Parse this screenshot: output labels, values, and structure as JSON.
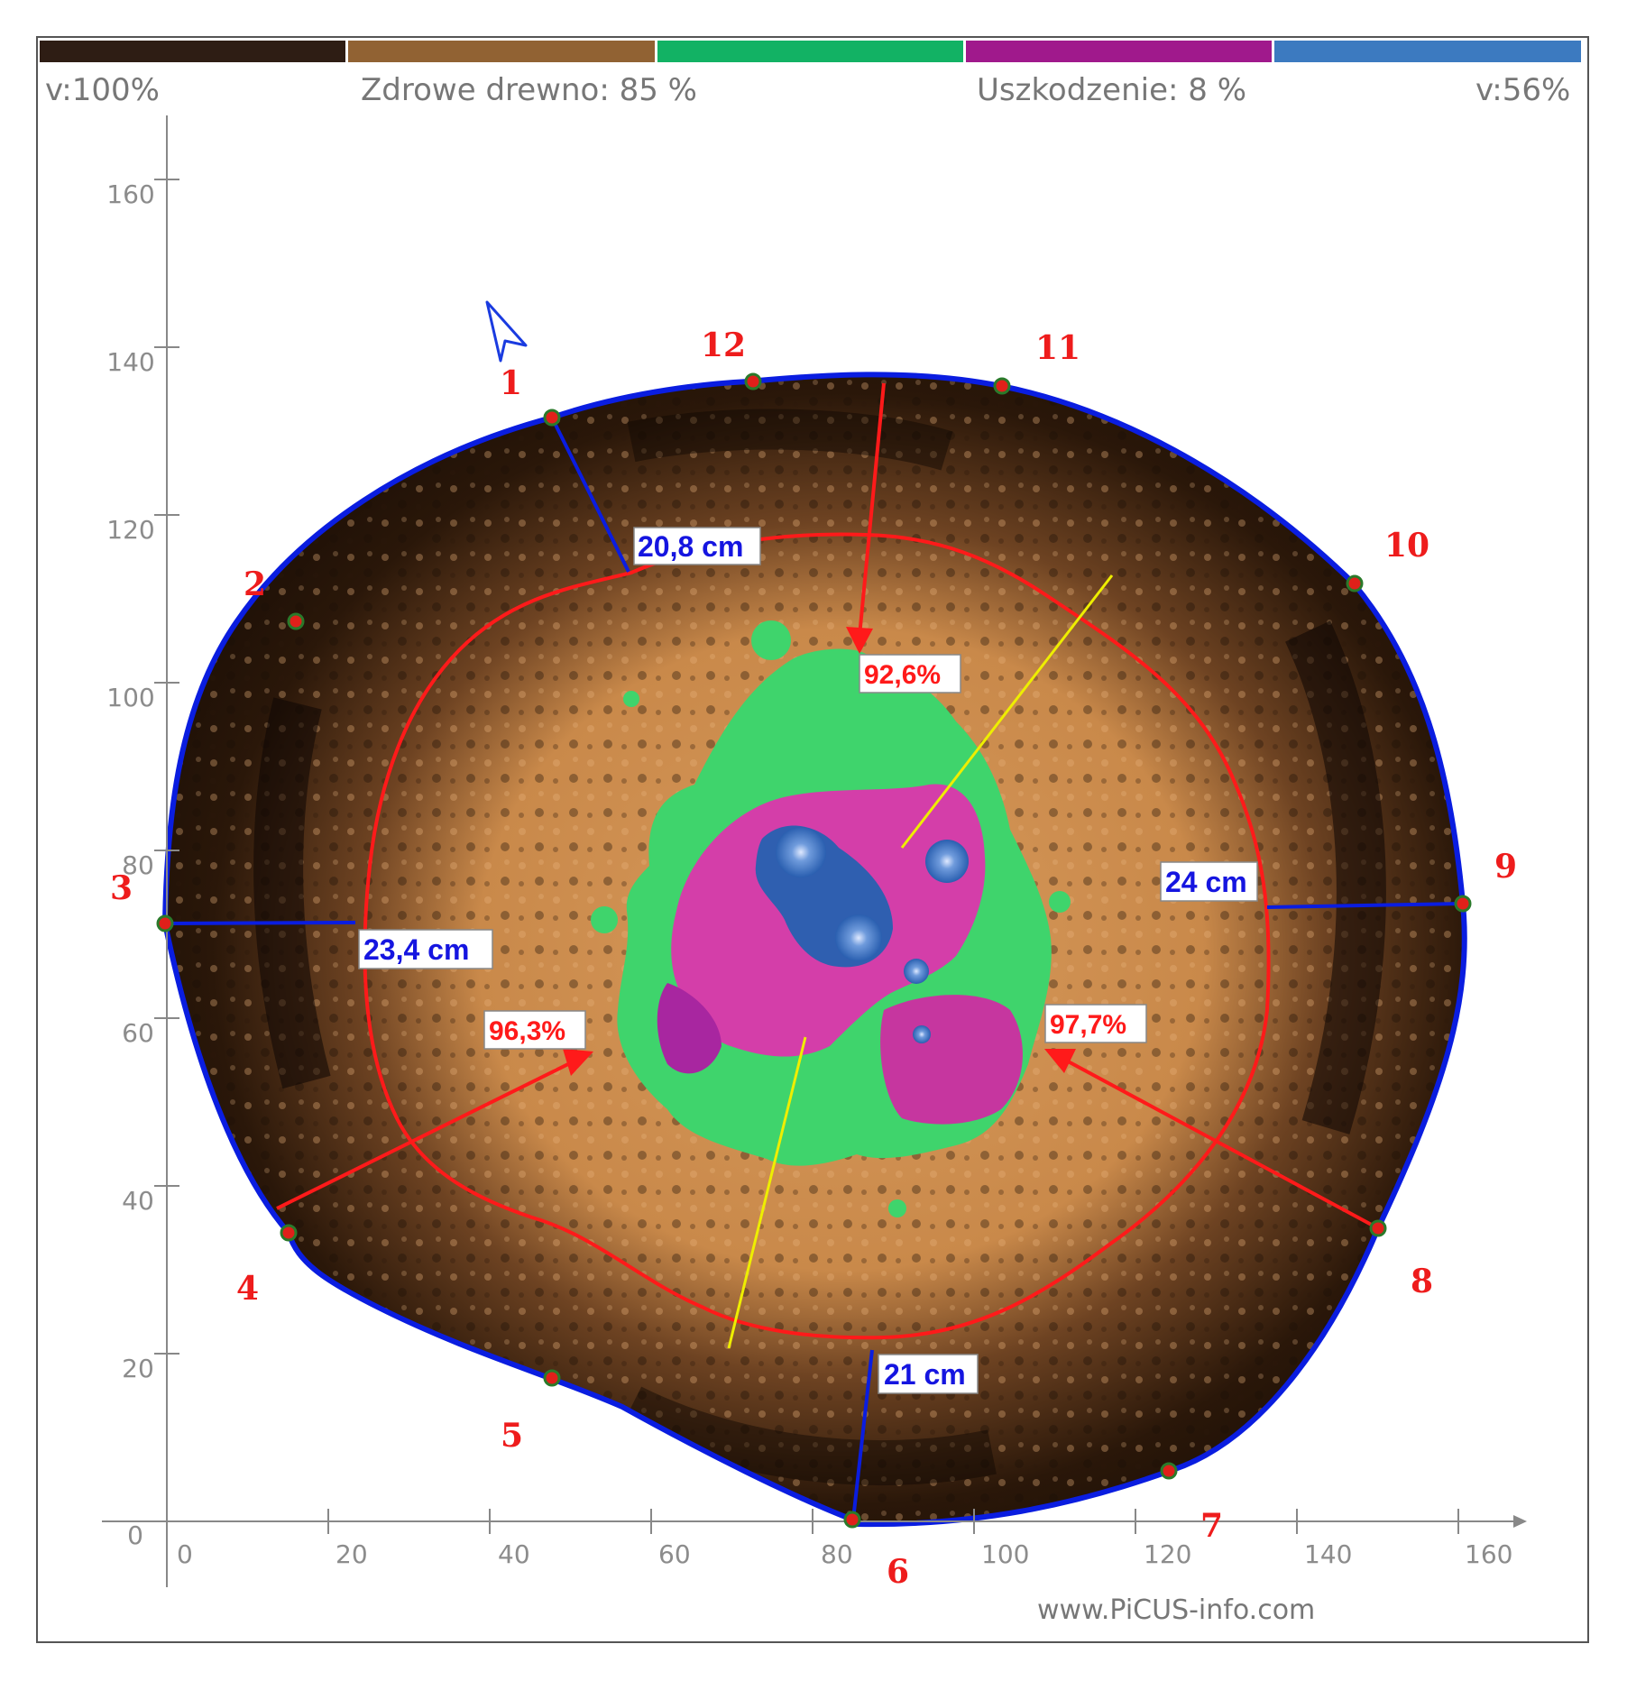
{
  "colorbar": {
    "segments": [
      {
        "name": "very-dark-brown",
        "color": "#2e1d14"
      },
      {
        "name": "brown",
        "color": "#916233"
      },
      {
        "name": "green",
        "color": "#12b264"
      },
      {
        "name": "magenta",
        "color": "#a0198c"
      },
      {
        "name": "blue",
        "color": "#3c7ac0"
      }
    ],
    "left_label": "v:100%",
    "sound_label": "Zdrowe drewno: 85 %",
    "damage_label": "Uszkodzenie: 8 %",
    "right_label": "v:56%"
  },
  "axes": {
    "x_ticks": [
      "0",
      "20",
      "40",
      "60",
      "80",
      "100",
      "120",
      "140",
      "160"
    ],
    "y_ticks": [
      "0",
      "20",
      "40",
      "60",
      "80",
      "100",
      "120",
      "140",
      "160"
    ],
    "range": [
      0,
      160
    ]
  },
  "sensors": [
    "1",
    "2",
    "3",
    "4",
    "5",
    "6",
    "7",
    "8",
    "9",
    "10",
    "11",
    "12"
  ],
  "residual_wall": [
    {
      "label": "20,8 cm"
    },
    {
      "label": "23,4 cm"
    },
    {
      "label": "24 cm"
    },
    {
      "label": "21 cm"
    }
  ],
  "damage_percent": [
    {
      "label": "92,6%"
    },
    {
      "label": "96,3%"
    },
    {
      "label": "97,7%"
    }
  ],
  "colors": {
    "outline": "#0a1de0",
    "sound_contour": "#ff1a1a",
    "axis_line": "#eeee00",
    "sensor_fill": "#e0201a",
    "sensor_ring": "#2a7a2a"
  },
  "watermark": "www.PiCUS-info.com"
}
